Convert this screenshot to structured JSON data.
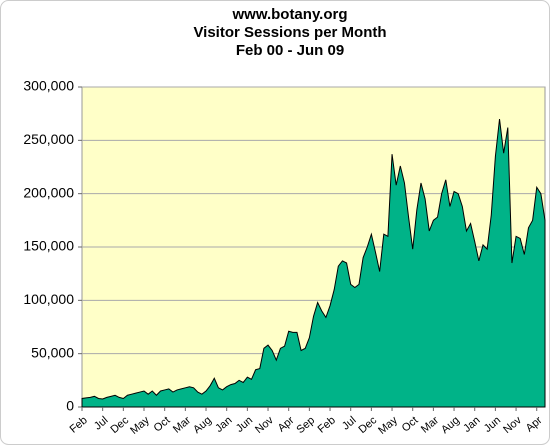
{
  "chart_data": {
    "type": "area",
    "title_lines": [
      "www.botany.org",
      "Visitor Sessions per Month",
      "Feb 00 - Jun 09"
    ],
    "categories": [
      "Feb",
      null,
      null,
      null,
      null,
      "Jul",
      null,
      null,
      null,
      null,
      "Dec",
      null,
      null,
      null,
      null,
      "May",
      null,
      null,
      null,
      null,
      "Oct",
      null,
      null,
      null,
      null,
      "Mar",
      null,
      null,
      null,
      null,
      "Aug",
      null,
      null,
      null,
      null,
      "Jan",
      null,
      null,
      null,
      null,
      "Jun",
      null,
      null,
      null,
      null,
      "Nov",
      null,
      null,
      null,
      null,
      "Apr",
      null,
      null,
      null,
      null,
      "Sep",
      null,
      null,
      null,
      null,
      "Feb",
      null,
      null,
      null,
      null,
      "Jul",
      null,
      null,
      null,
      null,
      "Dec",
      null,
      null,
      null,
      null,
      "May",
      null,
      null,
      null,
      null,
      "Oct",
      null,
      null,
      null,
      null,
      "Mar",
      null,
      null,
      null,
      null,
      "Aug",
      null,
      null,
      null,
      null,
      "Jan",
      null,
      null,
      null,
      null,
      "Jun",
      null,
      null,
      null,
      null,
      "Nov",
      null,
      null,
      null,
      null,
      "Apr",
      null,
      null
    ],
    "values": [
      8000,
      8500,
      9000,
      10000,
      8000,
      7500,
      9000,
      10000,
      11000,
      9000,
      8000,
      11000,
      12000,
      13000,
      14000,
      15000,
      12000,
      15000,
      11000,
      15000,
      16000,
      17000,
      14000,
      16000,
      17000,
      18000,
      19000,
      18000,
      14000,
      12000,
      15000,
      20000,
      27000,
      18000,
      16000,
      19000,
      21000,
      22000,
      25000,
      23000,
      28000,
      26000,
      35000,
      36000,
      55000,
      58000,
      53000,
      44000,
      55000,
      57000,
      71000,
      70000,
      70000,
      53000,
      55000,
      65000,
      85000,
      98000,
      90000,
      84000,
      95000,
      110000,
      132000,
      137000,
      135000,
      115000,
      112000,
      115000,
      140000,
      150000,
      162000,
      145000,
      127000,
      162000,
      160000,
      237000,
      208000,
      226000,
      210000,
      178000,
      148000,
      185000,
      210000,
      195000,
      165000,
      175000,
      178000,
      200000,
      213000,
      188000,
      202000,
      200000,
      188000,
      165000,
      172000,
      155000,
      137000,
      152000,
      148000,
      180000,
      235000,
      270000,
      238000,
      262000,
      135000,
      160000,
      158000,
      143000,
      168000,
      175000,
      206000,
      200000,
      175000
    ],
    "color": "#00b388",
    "ylim": [
      0,
      300000
    ],
    "yticks": [
      0,
      {
        "value": 50000,
        "label": "50,000"
      },
      {
        "value": 100000,
        "label": "100,000"
      },
      {
        "value": 150000,
        "label": "150,000"
      },
      {
        "value": 200000,
        "label": "200,000"
      },
      {
        "value": 250000,
        "label": "250,000"
      },
      {
        "value": 300000,
        "label": "300,000"
      }
    ],
    "grid": true
  }
}
